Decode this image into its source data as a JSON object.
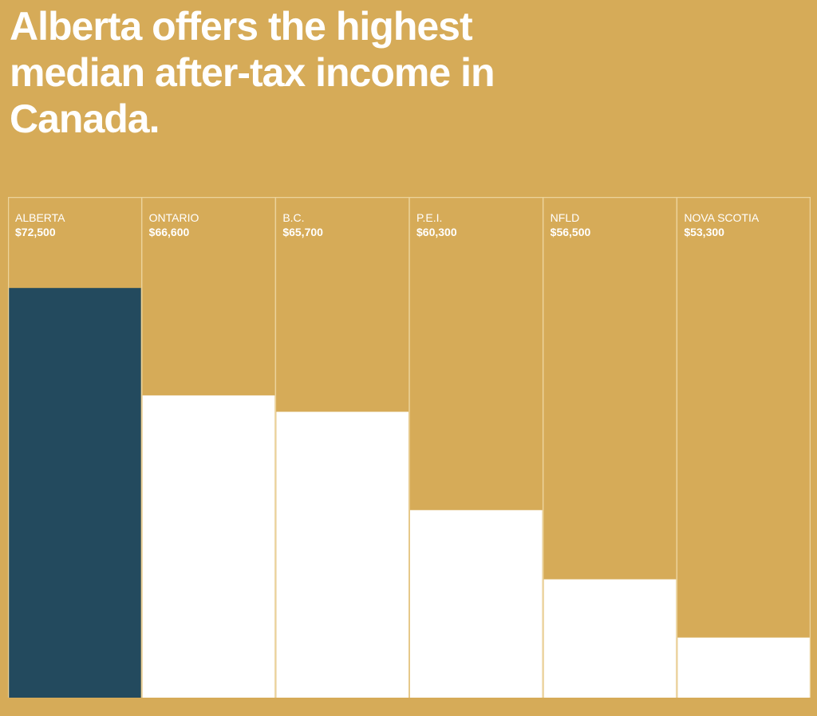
{
  "title": "Alberta offers the highest median after-tax income in Canada.",
  "colors": {
    "background": "#d6ab58",
    "highlight_bar": "#234a5e",
    "bar": "#ffffff",
    "divider": "#ecd39b"
  },
  "chart_data": {
    "type": "bar",
    "title": "Alberta offers the highest median after-tax income in Canada.",
    "xlabel": "",
    "ylabel": "",
    "categories": [
      "ALBERTA",
      "ONTARIO",
      "B.C.",
      "P.E.I.",
      "NFLD",
      "NOVA SCOTIA"
    ],
    "value_labels": [
      "$72,500",
      "$66,600",
      "$65,700",
      "$60,300",
      "$56,500",
      "$53,300"
    ],
    "values": [
      72500,
      66600,
      65700,
      60300,
      56500,
      53300
    ],
    "ylim": [
      50000,
      77500
    ],
    "highlight_index": 0,
    "grid": false,
    "legend": "none"
  }
}
